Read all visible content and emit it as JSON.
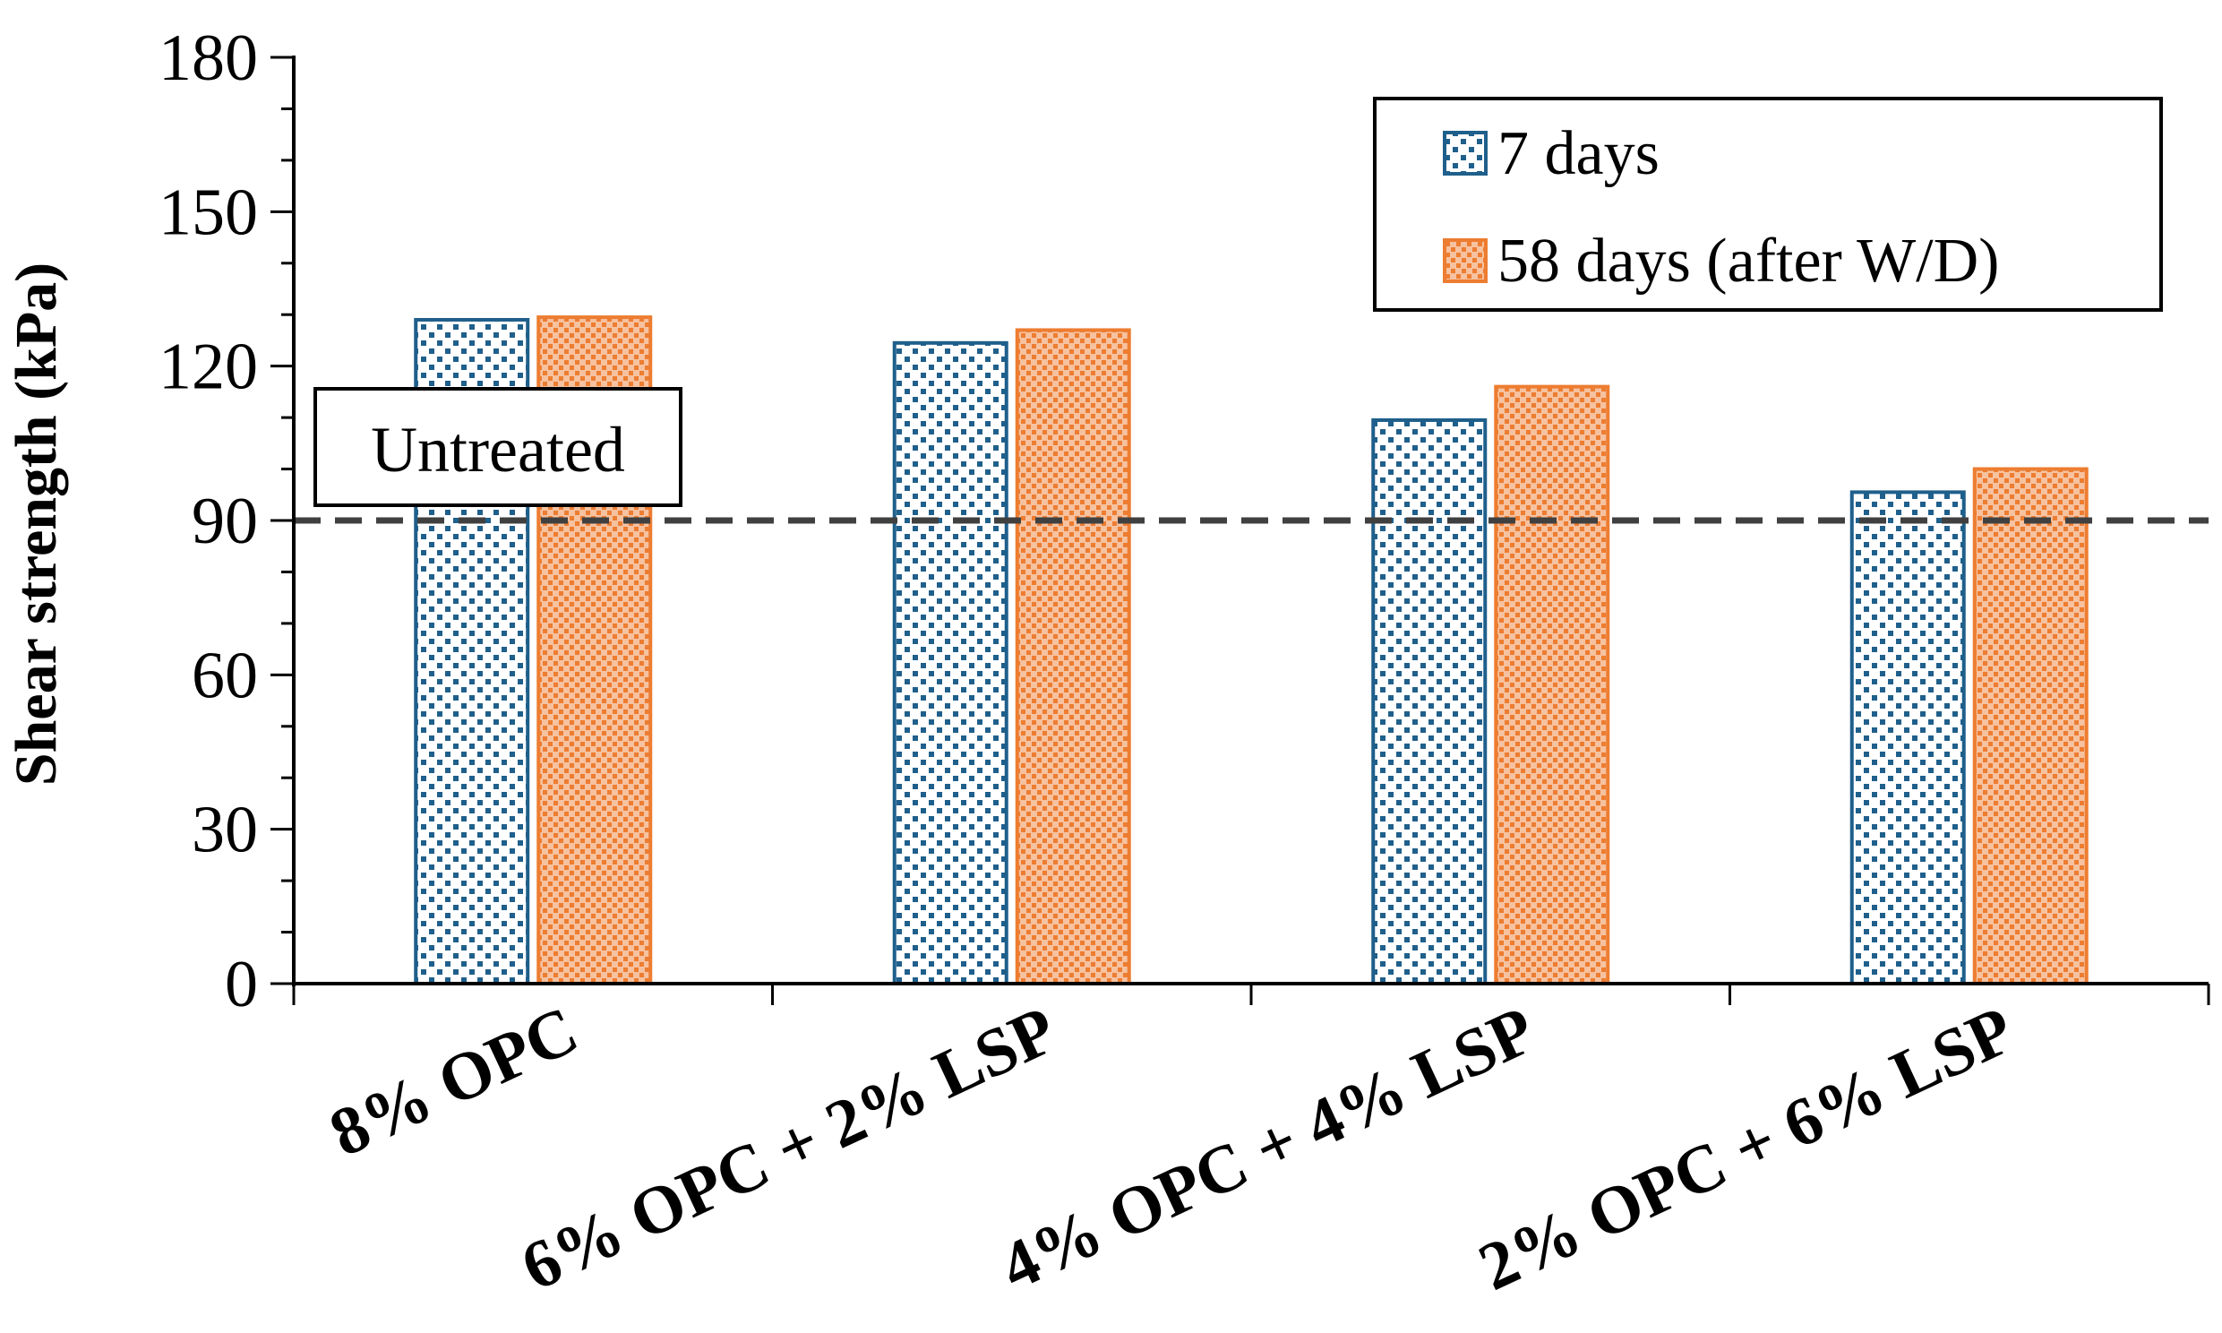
{
  "chart_data": {
    "type": "bar",
    "title": "",
    "xlabel": "",
    "ylabel": "Shear strength (kPa)",
    "ylim": [
      0,
      180
    ],
    "yticks": [
      0,
      30,
      60,
      90,
      120,
      150,
      180
    ],
    "grid": false,
    "categories": [
      "8% OPC",
      "6% OPC + 2% LSP",
      "4% OPC + 4% LSP",
      "2% OPC + 6% LSP"
    ],
    "series": [
      {
        "name": "7 days",
        "color": "#1f5f8b",
        "values": [
          129,
          124.5,
          109.5,
          95.5
        ]
      },
      {
        "name": "58 days (after W/D)",
        "color": "#ed7d31",
        "values": [
          129.5,
          127,
          116,
          100
        ]
      }
    ],
    "reference_line": {
      "label": "Untreated",
      "value": 90,
      "color": "#404040",
      "style": "dashed"
    },
    "legend_position": "top-right"
  }
}
